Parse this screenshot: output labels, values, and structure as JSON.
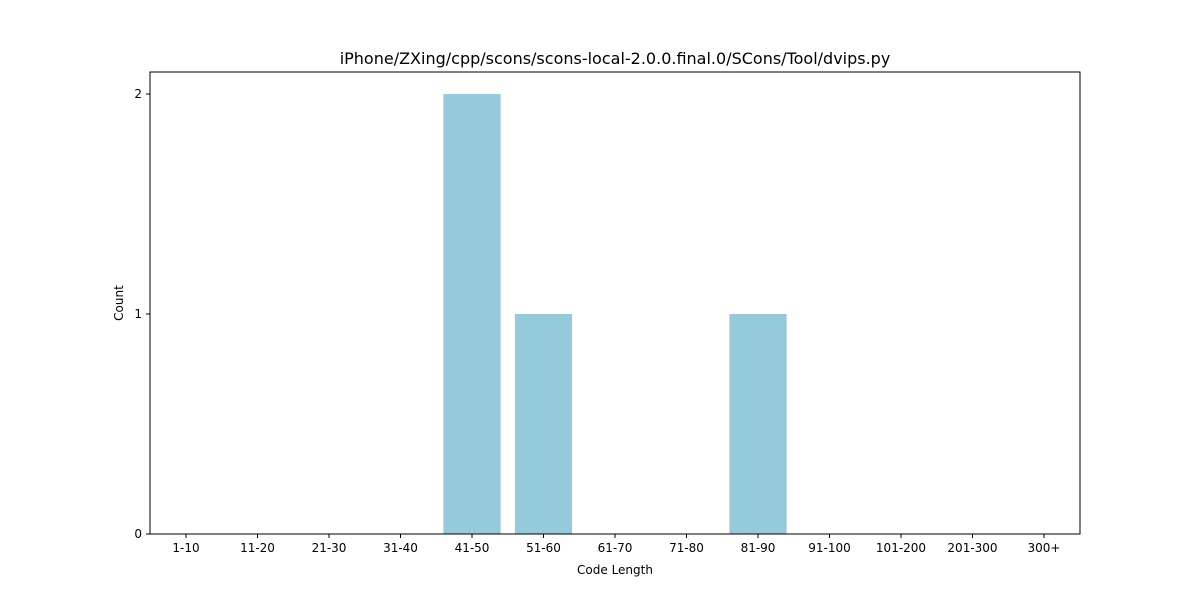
{
  "chart_data": {
    "type": "bar",
    "title": "iPhone/ZXing/cpp/scons/scons-local-2.0.0.final.0/SCons/Tool/dvips.py",
    "xlabel": "Code Length",
    "ylabel": "Count",
    "categories": [
      "1-10",
      "11-20",
      "21-30",
      "31-40",
      "41-50",
      "51-60",
      "61-70",
      "71-80",
      "81-90",
      "91-100",
      "101-200",
      "201-300",
      "300+"
    ],
    "values": [
      0,
      0,
      0,
      0,
      2,
      1,
      0,
      0,
      1,
      0,
      0,
      0,
      0
    ],
    "ylim": [
      0,
      2.1
    ],
    "yticks": [
      0,
      1,
      2
    ],
    "bar_color": "#96c9dc",
    "grid": false,
    "legend": "none"
  }
}
